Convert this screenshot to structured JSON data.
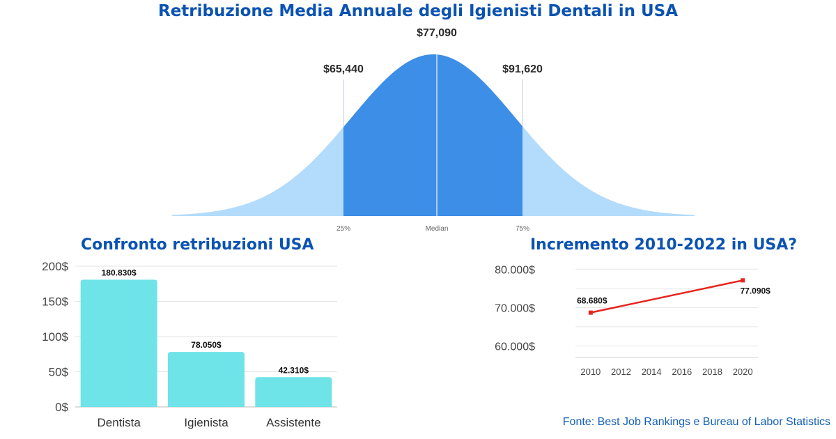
{
  "header": {
    "title": "Retribuzione Media Annuale degli Igienisti Dentali in USA"
  },
  "footer": {
    "source": "Fonte: Best Job Rankings e Bureau of Labor Statistics"
  },
  "colors": {
    "title": "#0b53b2",
    "curve_light": "#b3dbfb",
    "curve_dark": "#3d8ee7",
    "bar": "#6ee3e8",
    "line": "#e8231f"
  },
  "chart_data": [
    {
      "type": "area",
      "subtype": "distribution",
      "title": "Retribuzione Media Annuale degli Igienisti Dentali in USA",
      "percentiles": [
        {
          "tick": "25%",
          "label": "$65,440",
          "value": 65440
        },
        {
          "tick": "Median",
          "label": "$77,090",
          "value": 77090
        },
        {
          "tick": "75%",
          "label": "$91,620",
          "value": 91620
        }
      ]
    },
    {
      "type": "bar",
      "title": "Confronto retribuzioni USA",
      "categories": [
        "Dentista",
        "Igienista",
        "Assistente"
      ],
      "values": [
        180830,
        78050,
        42310
      ],
      "value_labels": [
        "180.830$",
        "78.050$",
        "42.310$"
      ],
      "ylim": [
        0,
        200000
      ],
      "yticks": [
        0,
        50000,
        100000,
        150000,
        200000
      ],
      "ytick_labels": [
        "0$",
        "50$",
        "100$",
        "150$",
        "200$"
      ],
      "grid": true
    },
    {
      "type": "line",
      "title": "Incremento 2010-2022 in USA?",
      "x": [
        2010,
        2020
      ],
      "values": [
        68680,
        77090
      ],
      "value_labels": [
        "68.680$",
        "77.090$"
      ],
      "xlim": [
        2009,
        2021
      ],
      "xticks": [
        2010,
        2012,
        2014,
        2016,
        2018,
        2020
      ],
      "ylim": [
        57000,
        81500
      ],
      "yticks": [
        60000,
        70000,
        80000
      ],
      "ytick_labels": [
        "60.000$",
        "70.000$",
        "80.000$"
      ],
      "grid": true
    }
  ]
}
